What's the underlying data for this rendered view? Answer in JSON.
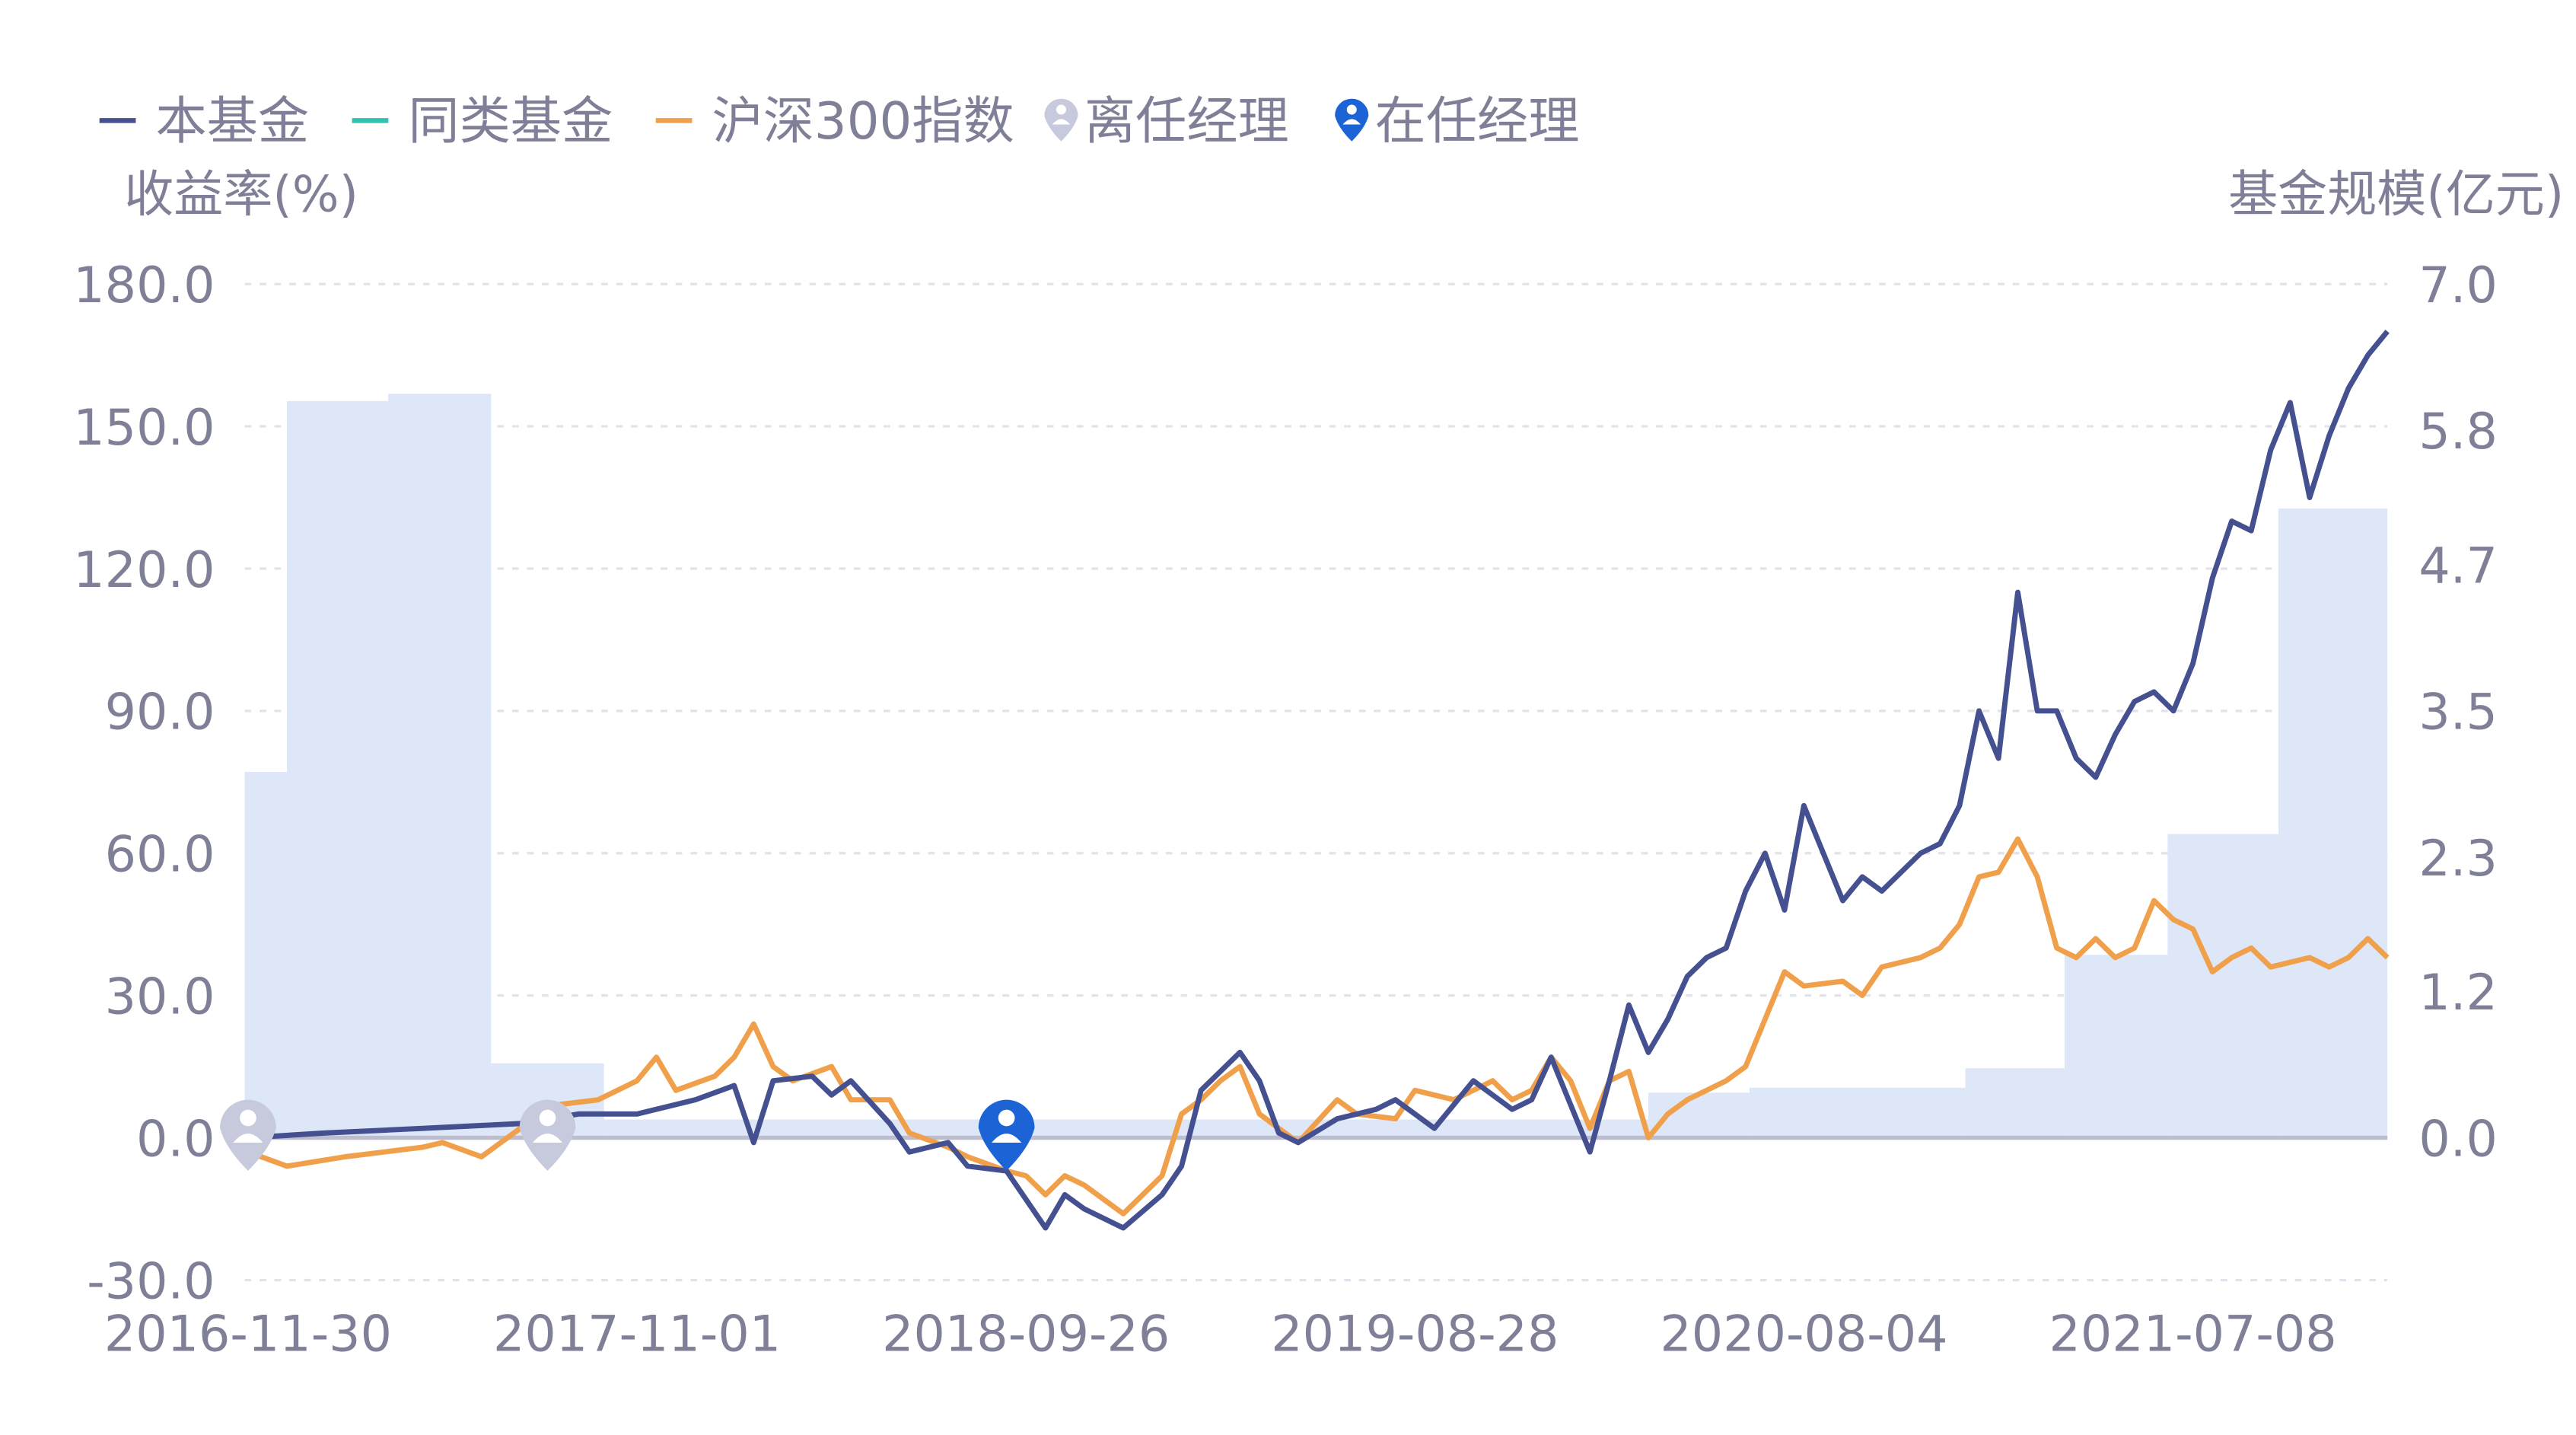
{
  "chart_data": {
    "type": "line",
    "legend": {
      "placement": "top-left",
      "items": [
        {
          "label": "本基金",
          "color": "#44508f",
          "kind": "line"
        },
        {
          "label": "同类基金",
          "color": "#2fc2b0",
          "kind": "line"
        },
        {
          "label": "沪深300指数",
          "color": "#f0a04b",
          "kind": "line"
        },
        {
          "label": "离任经理",
          "color": "#c7c9dd",
          "kind": "marker"
        },
        {
          "label": "在任经理",
          "color": "#1c63d6",
          "kind": "marker"
        }
      ]
    },
    "ylabel_left": "收益率(%)",
    "ylabel_right": "基金规模(亿元)",
    "ylim_left": [
      -30,
      180
    ],
    "yticks_left": [
      "-30.0",
      "0.0",
      "30.0",
      "60.0",
      "90.0",
      "120.0",
      "150.0",
      "180.0"
    ],
    "ylim_right": [
      0,
      7
    ],
    "yticks_right": [
      "0.0",
      "1.2",
      "2.3",
      "3.5",
      "4.7",
      "5.8",
      "7.0"
    ],
    "grid": true,
    "x_tick_labels": [
      "2016-11-30",
      "2017-11-01",
      "2018-09-26",
      "2019-08-28",
      "2020-08-04",
      "2021-07-08"
    ],
    "x_tick_every": 20,
    "x_last_index": 110,
    "series": [
      {
        "name": "本基金",
        "color": "#44508f",
        "points": [
          [
            0,
            0
          ],
          [
            4,
            1
          ],
          [
            9,
            2
          ],
          [
            14,
            3
          ],
          [
            17,
            5
          ],
          [
            20,
            5
          ],
          [
            23,
            8
          ],
          [
            25,
            11
          ],
          [
            26,
            -1
          ],
          [
            27,
            12
          ],
          [
            29,
            13
          ],
          [
            30,
            9
          ],
          [
            31,
            12
          ],
          [
            33,
            3
          ],
          [
            34,
            -3
          ],
          [
            36,
            -1
          ],
          [
            37,
            -6
          ],
          [
            39,
            -7
          ],
          [
            41,
            -19
          ],
          [
            42,
            -12
          ],
          [
            43,
            -15
          ],
          [
            45,
            -19
          ],
          [
            47,
            -12
          ],
          [
            48,
            -6
          ],
          [
            49,
            10
          ],
          [
            51,
            18
          ],
          [
            52,
            12
          ],
          [
            53,
            1
          ],
          [
            54,
            -1
          ],
          [
            56,
            4
          ],
          [
            58,
            6
          ],
          [
            59,
            8
          ],
          [
            61,
            2
          ],
          [
            63,
            12
          ],
          [
            65,
            6
          ],
          [
            66,
            8
          ],
          [
            67,
            17
          ],
          [
            69,
            -3
          ],
          [
            70,
            12
          ],
          [
            71,
            28
          ],
          [
            72,
            18
          ],
          [
            73,
            25
          ],
          [
            74,
            34
          ],
          [
            75,
            38
          ],
          [
            76,
            40
          ],
          [
            77,
            52
          ],
          [
            78,
            60
          ],
          [
            79,
            48
          ],
          [
            80,
            70
          ],
          [
            81,
            60
          ],
          [
            82,
            50
          ],
          [
            83,
            55
          ],
          [
            84,
            52
          ],
          [
            86,
            60
          ],
          [
            87,
            62
          ],
          [
            88,
            70
          ],
          [
            89,
            90
          ],
          [
            90,
            80
          ],
          [
            91,
            115
          ],
          [
            92,
            90
          ],
          [
            93,
            90
          ],
          [
            94,
            80
          ],
          [
            95,
            76
          ],
          [
            96,
            85
          ],
          [
            97,
            92
          ],
          [
            98,
            94
          ],
          [
            99,
            90
          ],
          [
            100,
            100
          ],
          [
            101,
            118
          ],
          [
            102,
            130
          ],
          [
            103,
            128
          ],
          [
            104,
            145
          ],
          [
            105,
            155
          ],
          [
            106,
            135
          ],
          [
            107,
            148
          ],
          [
            108,
            158
          ],
          [
            109,
            165
          ],
          [
            110,
            170
          ]
        ]
      },
      {
        "name": "同类基金",
        "color": "#2fc2b0",
        "points": []
      },
      {
        "name": "沪深300指数",
        "color": "#f0a04b",
        "points": [
          [
            0,
            -3
          ],
          [
            2,
            -6
          ],
          [
            5,
            -4
          ],
          [
            9,
            -2
          ],
          [
            10,
            -1
          ],
          [
            12,
            -4
          ],
          [
            14,
            2
          ],
          [
            16,
            7
          ],
          [
            18,
            8
          ],
          [
            20,
            12
          ],
          [
            21,
            17
          ],
          [
            22,
            10
          ],
          [
            24,
            13
          ],
          [
            25,
            17
          ],
          [
            26,
            24
          ],
          [
            27,
            15
          ],
          [
            28,
            12
          ],
          [
            30,
            15
          ],
          [
            31,
            8
          ],
          [
            33,
            8
          ],
          [
            34,
            1
          ],
          [
            36,
            -2
          ],
          [
            37,
            -4
          ],
          [
            39,
            -7
          ],
          [
            40,
            -8
          ],
          [
            41,
            -12
          ],
          [
            42,
            -8
          ],
          [
            43,
            -10
          ],
          [
            45,
            -16
          ],
          [
            46,
            -12
          ],
          [
            47,
            -8
          ],
          [
            48,
            5
          ],
          [
            49,
            8
          ],
          [
            50,
            12
          ],
          [
            51,
            15
          ],
          [
            52,
            5
          ],
          [
            53,
            2
          ],
          [
            54,
            -1
          ],
          [
            56,
            8
          ],
          [
            57,
            5
          ],
          [
            59,
            4
          ],
          [
            60,
            10
          ],
          [
            62,
            8
          ],
          [
            64,
            12
          ],
          [
            65,
            8
          ],
          [
            66,
            10
          ],
          [
            67,
            17
          ],
          [
            68,
            12
          ],
          [
            69,
            2
          ],
          [
            70,
            12
          ],
          [
            71,
            14
          ],
          [
            72,
            0
          ],
          [
            73,
            5
          ],
          [
            74,
            8
          ],
          [
            75,
            10
          ],
          [
            76,
            12
          ],
          [
            77,
            15
          ],
          [
            78,
            25
          ],
          [
            79,
            35
          ],
          [
            80,
            32
          ],
          [
            82,
            33
          ],
          [
            83,
            30
          ],
          [
            84,
            36
          ],
          [
            86,
            38
          ],
          [
            87,
            40
          ],
          [
            88,
            45
          ],
          [
            89,
            55
          ],
          [
            90,
            56
          ],
          [
            91,
            63
          ],
          [
            92,
            55
          ],
          [
            93,
            40
          ],
          [
            94,
            38
          ],
          [
            95,
            42
          ],
          [
            96,
            38
          ],
          [
            97,
            40
          ],
          [
            98,
            50
          ],
          [
            99,
            46
          ],
          [
            100,
            44
          ],
          [
            101,
            35
          ],
          [
            102,
            38
          ],
          [
            103,
            40
          ],
          [
            104,
            36
          ],
          [
            106,
            38
          ],
          [
            107,
            36
          ],
          [
            108,
            38
          ],
          [
            109,
            42
          ],
          [
            110,
            38
          ]
        ]
      }
    ],
    "fund_size_bars": {
      "color": "#dde7f8",
      "axis": "right",
      "periods": [
        {
          "from": 0,
          "to": 2,
          "value": 3.0
        },
        {
          "from": 2,
          "to": 7.2,
          "value": 6.04
        },
        {
          "from": 7.2,
          "to": 12.5,
          "value": 6.1
        },
        {
          "from": 12.5,
          "to": 18.3,
          "value": 0.61
        },
        {
          "from": 18.3,
          "to": 72,
          "value": 0.15
        },
        {
          "from": 72,
          "to": 77.2,
          "value": 0.37
        },
        {
          "from": 77.2,
          "to": 88.3,
          "value": 0.41
        },
        {
          "from": 88.3,
          "to": 93.4,
          "value": 0.57
        },
        {
          "from": 93.4,
          "to": 98.7,
          "value": 1.5
        },
        {
          "from": 98.7,
          "to": 104.4,
          "value": 2.49
        },
        {
          "from": 104.4,
          "to": 110,
          "value": 5.16
        }
      ]
    },
    "manager_markers": [
      {
        "index": 0,
        "status": "离任经理"
      },
      {
        "index": 15.4,
        "status": "离任经理"
      },
      {
        "index": 39,
        "status": "在任经理"
      }
    ]
  }
}
